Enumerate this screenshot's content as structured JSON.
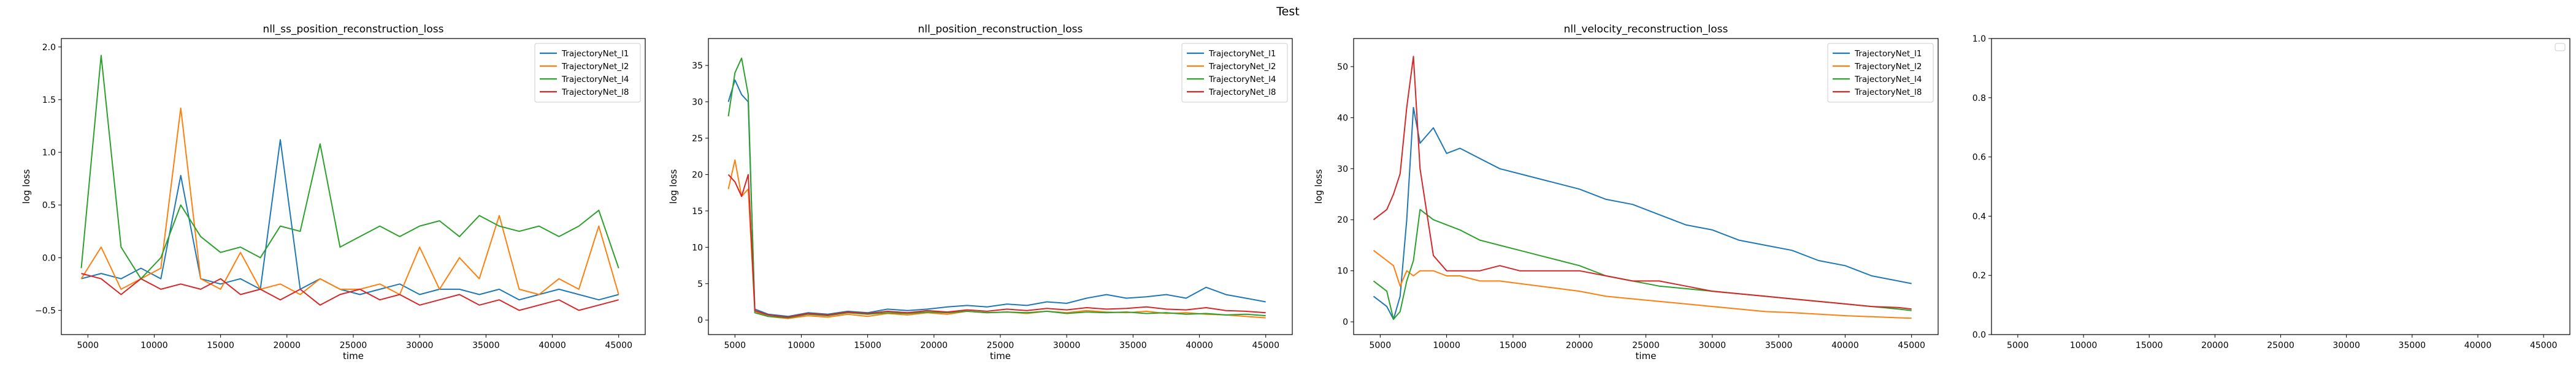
{
  "figure": {
    "title": "Test"
  },
  "colors": {
    "TrajectoryNet_l1": "#1f77b4",
    "TrajectoryNet_l2": "#ff7f0e",
    "TrajectoryNet_l4": "#2ca02c",
    "TrajectoryNet_l8": "#d62728"
  },
  "chart_data": [
    {
      "type": "line",
      "title": "nll_ss_position_reconstruction_loss",
      "xlabel": "time",
      "ylabel": "log loss",
      "xlim": [
        3000,
        47000
      ],
      "ylim": [
        -0.73,
        2.08
      ],
      "xticks": [
        5000,
        10000,
        15000,
        20000,
        25000,
        30000,
        35000,
        40000,
        45000
      ],
      "yticks": [
        -0.5,
        0.0,
        0.5,
        1.0,
        1.5,
        2.0
      ],
      "ytick_labels": [
        "−0.5",
        "0.0",
        "0.5",
        "1.0",
        "1.5",
        "2.0"
      ],
      "legend": "top-right",
      "x": [
        4500,
        6000,
        7500,
        9000,
        10500,
        12000,
        13500,
        15000,
        16500,
        18000,
        19500,
        21000,
        22500,
        24000,
        25500,
        27000,
        28500,
        30000,
        31500,
        33000,
        34500,
        36000,
        37500,
        39000,
        40500,
        42000,
        43500,
        45000
      ],
      "series": [
        {
          "name": "TrajectoryNet_l1",
          "values": [
            -0.2,
            -0.15,
            -0.2,
            -0.1,
            -0.2,
            0.78,
            -0.2,
            -0.25,
            -0.2,
            -0.3,
            1.12,
            -0.3,
            -0.2,
            -0.3,
            -0.35,
            -0.3,
            -0.25,
            -0.35,
            -0.3,
            -0.3,
            -0.35,
            -0.3,
            -0.4,
            -0.35,
            -0.3,
            -0.35,
            -0.4,
            -0.35
          ]
        },
        {
          "name": "TrajectoryNet_l2",
          "values": [
            -0.2,
            0.1,
            -0.3,
            -0.2,
            -0.1,
            1.42,
            -0.2,
            -0.3,
            0.05,
            -0.3,
            -0.25,
            -0.35,
            -0.2,
            -0.3,
            -0.3,
            -0.25,
            -0.35,
            0.1,
            -0.3,
            0.0,
            -0.2,
            0.4,
            -0.3,
            -0.35,
            -0.2,
            -0.3,
            0.3,
            -0.35
          ]
        },
        {
          "name": "TrajectoryNet_l4",
          "values": [
            -0.1,
            1.92,
            0.1,
            -0.2,
            0.0,
            0.5,
            0.2,
            0.05,
            0.1,
            0.0,
            0.3,
            0.25,
            1.08,
            0.1,
            0.2,
            0.3,
            0.2,
            0.3,
            0.35,
            0.2,
            0.4,
            0.3,
            0.25,
            0.3,
            0.2,
            0.3,
            0.45,
            -0.1
          ]
        },
        {
          "name": "TrajectoryNet_l8",
          "values": [
            -0.15,
            -0.2,
            -0.35,
            -0.2,
            -0.3,
            -0.25,
            -0.3,
            -0.2,
            -0.35,
            -0.3,
            -0.4,
            -0.3,
            -0.45,
            -0.35,
            -0.3,
            -0.4,
            -0.35,
            -0.45,
            -0.4,
            -0.35,
            -0.45,
            -0.4,
            -0.5,
            -0.45,
            -0.4,
            -0.5,
            -0.45,
            -0.4
          ]
        }
      ]
    },
    {
      "type": "line",
      "title": "nll_position_reconstruction_loss",
      "xlabel": "time",
      "ylabel": "log loss",
      "xlim": [
        3000,
        47000
      ],
      "ylim": [
        -2.0,
        38.7
      ],
      "xticks": [
        5000,
        10000,
        15000,
        20000,
        25000,
        30000,
        35000,
        40000,
        45000
      ],
      "yticks": [
        0,
        5,
        10,
        15,
        20,
        25,
        30,
        35
      ],
      "legend": "top-right",
      "x": [
        4500,
        5000,
        5500,
        6000,
        6500,
        7500,
        9000,
        10500,
        12000,
        13500,
        15000,
        16500,
        18000,
        19500,
        21000,
        22500,
        24000,
        25500,
        27000,
        28500,
        30000,
        31500,
        33000,
        34500,
        36000,
        37500,
        39000,
        40500,
        42000,
        43500,
        45000
      ],
      "series": [
        {
          "name": "TrajectoryNet_l1",
          "values": [
            30,
            33,
            31,
            30,
            1.5,
            0.8,
            0.5,
            1.0,
            0.8,
            1.2,
            1.0,
            1.5,
            1.3,
            1.5,
            1.8,
            2.0,
            1.8,
            2.2,
            2.0,
            2.5,
            2.3,
            3.0,
            3.5,
            3.0,
            3.2,
            3.5,
            3.0,
            4.5,
            3.5,
            3.0,
            2.5
          ]
        },
        {
          "name": "TrajectoryNet_l2",
          "values": [
            18,
            22,
            17,
            18,
            1.2,
            0.5,
            0.2,
            0.6,
            0.4,
            0.8,
            0.5,
            0.9,
            0.7,
            1.0,
            0.8,
            1.2,
            1.0,
            1.1,
            0.9,
            1.2,
            1.0,
            1.3,
            1.1,
            1.0,
            1.2,
            0.9,
            1.0,
            0.8,
            0.7,
            0.5,
            0.3
          ]
        },
        {
          "name": "TrajectoryNet_l4",
          "values": [
            28,
            34,
            36,
            31,
            1.0,
            0.5,
            0.3,
            0.8,
            0.6,
            1.0,
            0.8,
            1.0,
            0.9,
            1.1,
            1.0,
            1.2,
            1.0,
            1.1,
            1.0,
            1.2,
            0.9,
            1.1,
            1.0,
            1.1,
            0.9,
            1.0,
            0.8,
            0.9,
            0.7,
            0.8,
            0.6
          ]
        },
        {
          "name": "TrajectoryNet_l8",
          "values": [
            20,
            19,
            17,
            20,
            1.3,
            0.7,
            0.4,
            0.9,
            0.7,
            1.1,
            0.9,
            1.2,
            1.0,
            1.3,
            1.1,
            1.4,
            1.2,
            1.5,
            1.3,
            1.6,
            1.4,
            1.7,
            1.5,
            1.6,
            1.8,
            1.5,
            1.4,
            1.7,
            1.3,
            1.2,
            1.0
          ]
        }
      ]
    },
    {
      "type": "line",
      "title": "nll_velocity_reconstruction_loss",
      "xlabel": "time",
      "ylabel": "log loss",
      "xlim": [
        3000,
        47000
      ],
      "ylim": [
        -2.5,
        55.5
      ],
      "xticks": [
        5000,
        10000,
        15000,
        20000,
        25000,
        30000,
        35000,
        40000,
        45000
      ],
      "yticks": [
        0,
        10,
        20,
        30,
        40,
        50
      ],
      "legend": "top-right",
      "x": [
        4500,
        5500,
        6000,
        6500,
        7000,
        7500,
        8000,
        9000,
        10000,
        11000,
        12500,
        14000,
        15500,
        17000,
        18500,
        20000,
        22000,
        24000,
        26000,
        28000,
        30000,
        32000,
        34000,
        36000,
        38000,
        40000,
        42000,
        44000,
        45000
      ],
      "series": [
        {
          "name": "TrajectoryNet_l1",
          "values": [
            5,
            3,
            0.5,
            5,
            20,
            42,
            35,
            38,
            33,
            34,
            32,
            30,
            29,
            28,
            27,
            26,
            24,
            23,
            21,
            19,
            18,
            16,
            15,
            14,
            12,
            11,
            9,
            8,
            7.5
          ]
        },
        {
          "name": "TrajectoryNet_l2",
          "values": [
            14,
            12,
            11,
            7,
            10,
            9,
            10,
            10,
            9,
            9,
            8,
            8,
            7.5,
            7,
            6.5,
            6,
            5,
            4.5,
            4,
            3.5,
            3,
            2.5,
            2,
            1.8,
            1.5,
            1.2,
            1,
            0.8,
            0.7
          ]
        },
        {
          "name": "TrajectoryNet_l4",
          "values": [
            8,
            6,
            0.5,
            2,
            8,
            12,
            22,
            20,
            19,
            18,
            16,
            15,
            14,
            13,
            12,
            11,
            9,
            8,
            7,
            6.5,
            6,
            5.5,
            5,
            4.5,
            4,
            3.5,
            3,
            2.5,
            2.2
          ]
        },
        {
          "name": "TrajectoryNet_l8",
          "values": [
            20,
            22,
            25,
            29,
            42,
            52,
            30,
            13,
            10,
            10,
            10,
            11,
            10,
            10,
            10,
            10,
            9,
            8,
            8,
            7,
            6,
            5.5,
            5,
            4.5,
            4,
            3.5,
            3,
            2.8,
            2.5
          ]
        }
      ]
    },
    {
      "type": "line",
      "title": "",
      "xlabel": "",
      "ylabel": "",
      "xlim": [
        3000,
        47000
      ],
      "ylim": [
        0,
        1
      ],
      "xticks": [
        5000,
        10000,
        15000,
        20000,
        25000,
        30000,
        35000,
        40000,
        45000
      ],
      "yticks": [
        0.0,
        0.2,
        0.4,
        0.6,
        0.8,
        1.0
      ],
      "ytick_labels": [
        "0.0",
        "0.2",
        "0.4",
        "0.6",
        "0.8",
        "1.0"
      ],
      "legend": "top-right-empty",
      "series": []
    }
  ]
}
